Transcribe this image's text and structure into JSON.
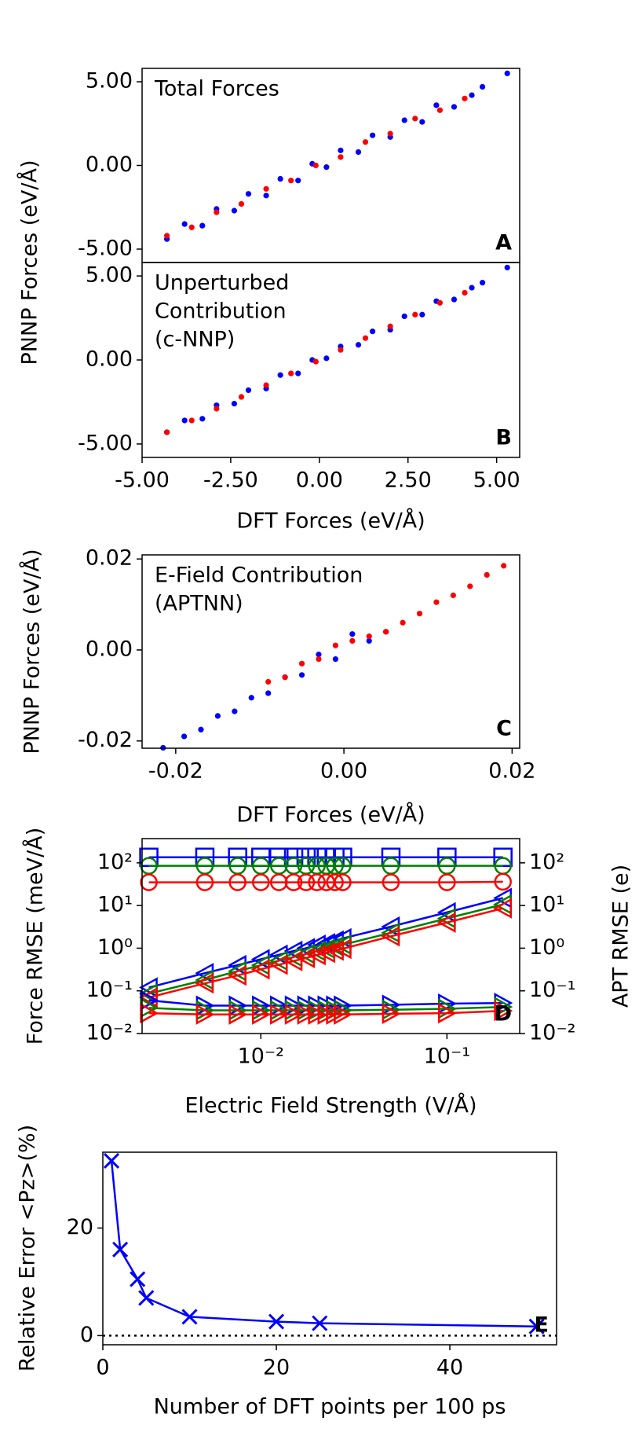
{
  "chart_data": [
    {
      "type": "scatter",
      "annotation": [
        "Total Forces"
      ],
      "panel_label": "A",
      "ylabel": "PNNP Forces (eV/Å)",
      "xlim": [
        -5.0,
        5.65
      ],
      "ylim": [
        -5.8,
        5.8
      ],
      "yticks": [
        {
          "value": -5,
          "label": "-5.00"
        },
        {
          "value": 0,
          "label": "0.00"
        },
        {
          "value": 5,
          "label": "5.00"
        }
      ],
      "series": [
        {
          "color": "#0000ff",
          "x": [
            -4.3,
            -3.8,
            -3.3,
            -2.9,
            -2.4,
            -2.0,
            -1.5,
            -1.1,
            -0.6,
            -0.2,
            0.2,
            0.6,
            1.1,
            1.5,
            2.0,
            2.4,
            2.9,
            3.3,
            3.8,
            4.3,
            4.6,
            5.3
          ],
          "values": [
            -4.4,
            -3.5,
            -3.6,
            -2.6,
            -2.7,
            -1.7,
            -1.8,
            -0.8,
            -0.9,
            0.1,
            -0.1,
            0.9,
            0.8,
            1.8,
            1.7,
            2.7,
            2.6,
            3.6,
            3.5,
            4.2,
            4.7,
            5.5
          ]
        },
        {
          "color": "#ff0000",
          "x": [
            -4.3,
            -3.6,
            -2.9,
            -2.2,
            -1.5,
            -0.8,
            -0.1,
            0.6,
            1.3,
            2.0,
            2.7,
            3.4,
            4.1
          ],
          "values": [
            -4.2,
            -3.7,
            -2.8,
            -2.3,
            -1.4,
            -0.9,
            0.0,
            0.5,
            1.4,
            1.9,
            2.8,
            3.3,
            4.0
          ]
        }
      ]
    },
    {
      "type": "scatter",
      "annotation": [
        "Unperturbed",
        "Contribution",
        "(c-NNP)"
      ],
      "panel_label": "B",
      "xlabel": "DFT Forces (eV/Å)",
      "xlim": [
        -5.0,
        5.65
      ],
      "ylim": [
        -5.8,
        5.8
      ],
      "xticks": [
        {
          "value": -5,
          "label": "-5.00"
        },
        {
          "value": -2.5,
          "label": "-2.50"
        },
        {
          "value": 0,
          "label": "0.00"
        },
        {
          "value": 2.5,
          "label": "2.50"
        },
        {
          "value": 5,
          "label": "5.00"
        }
      ],
      "yticks": [
        {
          "value": -5,
          "label": "-5.00"
        },
        {
          "value": 0,
          "label": "0.00"
        },
        {
          "value": 5,
          "label": "5.00"
        }
      ],
      "series": [
        {
          "color": "#0000ff",
          "x": [
            -4.3,
            -3.8,
            -3.3,
            -2.9,
            -2.4,
            -2.0,
            -1.5,
            -1.1,
            -0.6,
            -0.2,
            0.2,
            0.6,
            1.1,
            1.5,
            2.0,
            2.4,
            2.9,
            3.3,
            3.8,
            4.3,
            4.6,
            5.3
          ],
          "values": [
            -4.3,
            -3.6,
            -3.5,
            -2.7,
            -2.6,
            -1.8,
            -1.7,
            -0.9,
            -0.8,
            0.0,
            0.1,
            0.8,
            0.9,
            1.7,
            1.8,
            2.6,
            2.7,
            3.5,
            3.6,
            4.3,
            4.6,
            5.5
          ]
        },
        {
          "color": "#ff0000",
          "x": [
            -4.3,
            -3.6,
            -2.9,
            -2.2,
            -1.5,
            -0.8,
            -0.1,
            0.6,
            1.3,
            2.0,
            2.7,
            3.4,
            4.1
          ],
          "values": [
            -4.3,
            -3.6,
            -2.9,
            -2.2,
            -1.5,
            -0.8,
            -0.1,
            0.6,
            1.3,
            2.0,
            2.7,
            3.4,
            4.0
          ]
        }
      ]
    },
    {
      "type": "scatter",
      "annotation": [
        "E-Field Contribution",
        "(APTNN)"
      ],
      "panel_label": "C",
      "xlabel": "DFT Forces (eV/Å)",
      "ylabel": "PNNP Forces (eV/Å)",
      "xlim": [
        -0.024,
        0.0209
      ],
      "ylim": [
        -0.0216,
        0.0209
      ],
      "xticks": [
        -0.02,
        {
          "value": 0,
          "label": "0.00"
        },
        0.02
      ],
      "yticks": [
        -0.02,
        {
          "value": 0,
          "label": "0.00"
        },
        0.02
      ],
      "series": [
        {
          "color": "#0000ff",
          "x": [
            -0.0215,
            -0.019,
            -0.017,
            -0.015,
            -0.013,
            -0.011,
            -0.009,
            -0.007,
            -0.005,
            -0.003,
            -0.001,
            0.001,
            0.003,
            0.005
          ],
          "values": [
            -0.0215,
            -0.019,
            -0.0175,
            -0.0145,
            -0.0135,
            -0.0105,
            -0.0095,
            -0.006,
            -0.0055,
            -0.001,
            -0.002,
            0.0035,
            0.002,
            0.004
          ]
        },
        {
          "color": "#ff0000",
          "x": [
            -0.009,
            -0.007,
            -0.005,
            -0.003,
            -0.001,
            0.001,
            0.003,
            0.005,
            0.007,
            0.009,
            0.011,
            0.013,
            0.015,
            0.017,
            0.019
          ],
          "values": [
            -0.007,
            -0.006,
            -0.003,
            -0.002,
            0.001,
            0.002,
            0.003,
            0.004,
            0.006,
            0.008,
            0.0105,
            0.012,
            0.014,
            0.0165,
            0.0185
          ]
        }
      ]
    },
    {
      "type": "line",
      "panel_label": "D",
      "xlabel": "Electric Field Strength (V/Å)",
      "ylabel": "Force RMSE (meV/Å)",
      "y2label": "APT RMSE (e)",
      "xscale": "log",
      "yscale": "log",
      "x": [
        0.0025,
        0.005,
        0.0075,
        0.01,
        0.0125,
        0.015,
        0.0175,
        0.02,
        0.0225,
        0.025,
        0.0275,
        0.05,
        0.1,
        0.2
      ],
      "xlim": [
        0.0023,
        0.246
      ],
      "ylim": [
        0.01,
        370
      ],
      "y2lim": [
        0.01,
        370
      ],
      "xticks": [
        {
          "value": 0.01,
          "label": "10⁻²"
        },
        {
          "value": 0.1,
          "label": "10⁻¹"
        }
      ],
      "yticks": [
        {
          "value": 0.01,
          "label": "10⁻²"
        },
        {
          "value": 0.1,
          "label": "10⁻¹"
        },
        {
          "value": 1,
          "label": "10⁰"
        },
        {
          "value": 10,
          "label": "10¹"
        },
        {
          "value": 100,
          "label": "10²"
        }
      ],
      "y2ticks": [
        {
          "value": 0.01,
          "label": "10⁻²"
        },
        {
          "value": 0.1,
          "label": "10⁻¹"
        },
        {
          "value": 1,
          "label": "10⁰"
        },
        {
          "value": 10,
          "label": "10¹"
        },
        {
          "value": 100,
          "label": "10²"
        }
      ],
      "series": [
        {
          "color": "#0000ff",
          "marker": "square",
          "values": [
            135,
            135,
            135,
            135,
            135,
            135,
            135,
            135,
            135,
            135,
            135,
            135,
            135,
            135
          ]
        },
        {
          "color": "#008000",
          "marker": "circle",
          "values": [
            85,
            85,
            85,
            85,
            85,
            85,
            85,
            85,
            85,
            85,
            85,
            85,
            85,
            85
          ]
        },
        {
          "color": "#ff0000",
          "marker": "circle",
          "values": [
            35,
            35,
            35,
            35,
            35,
            35,
            35,
            35,
            35,
            35,
            35,
            35,
            35,
            36
          ]
        },
        {
          "color": "#0000ff",
          "marker": "triangle-left",
          "axis": "y2",
          "values": [
            0.12,
            0.26,
            0.4,
            0.55,
            0.7,
            0.86,
            1.0,
            1.2,
            1.3,
            1.5,
            1.7,
            3.2,
            6.9,
            15
          ]
        },
        {
          "color": "#008000",
          "marker": "triangle-left",
          "axis": "y2",
          "values": [
            0.086,
            0.18,
            0.29,
            0.4,
            0.51,
            0.62,
            0.73,
            0.85,
            0.97,
            1.1,
            1.2,
            2.3,
            5.0,
            10.6
          ]
        },
        {
          "color": "#ff0000",
          "marker": "triangle-left",
          "axis": "y2",
          "values": [
            0.07,
            0.15,
            0.23,
            0.32,
            0.41,
            0.5,
            0.59,
            0.69,
            0.78,
            0.88,
            0.97,
            1.9,
            4.0,
            8.6
          ]
        },
        {
          "color": "#0000ff",
          "marker": "triangle-right",
          "values": [
            0.06,
            0.045,
            0.045,
            0.045,
            0.045,
            0.045,
            0.045,
            0.045,
            0.045,
            0.045,
            0.045,
            0.047,
            0.05,
            0.052
          ]
        },
        {
          "color": "#008000",
          "marker": "triangle-right",
          "values": [
            0.04,
            0.035,
            0.035,
            0.035,
            0.035,
            0.035,
            0.035,
            0.035,
            0.035,
            0.035,
            0.035,
            0.036,
            0.038,
            0.042
          ]
        },
        {
          "color": "#ff0000",
          "marker": "triangle-right",
          "values": [
            0.03,
            0.028,
            0.028,
            0.028,
            0.028,
            0.028,
            0.028,
            0.028,
            0.028,
            0.028,
            0.028,
            0.029,
            0.03,
            0.034
          ]
        }
      ]
    },
    {
      "type": "line",
      "panel_label": "E",
      "xlabel": "Number of DFT points per 100 ps",
      "ylabel": "Relative Error <Pz>(%)",
      "x": [
        1,
        2,
        4,
        5,
        10,
        20,
        25,
        50
      ],
      "values": [
        32.5,
        16,
        10.5,
        7,
        3.5,
        2.6,
        2.3,
        1.7
      ],
      "color": "#0000ff",
      "marker": "x",
      "reference_line": 0,
      "xlim": [
        0,
        52.3
      ],
      "ylim": [
        -1.7,
        34.1
      ],
      "xticks": [
        0,
        20,
        40
      ],
      "yticks": [
        0,
        20
      ]
    }
  ]
}
